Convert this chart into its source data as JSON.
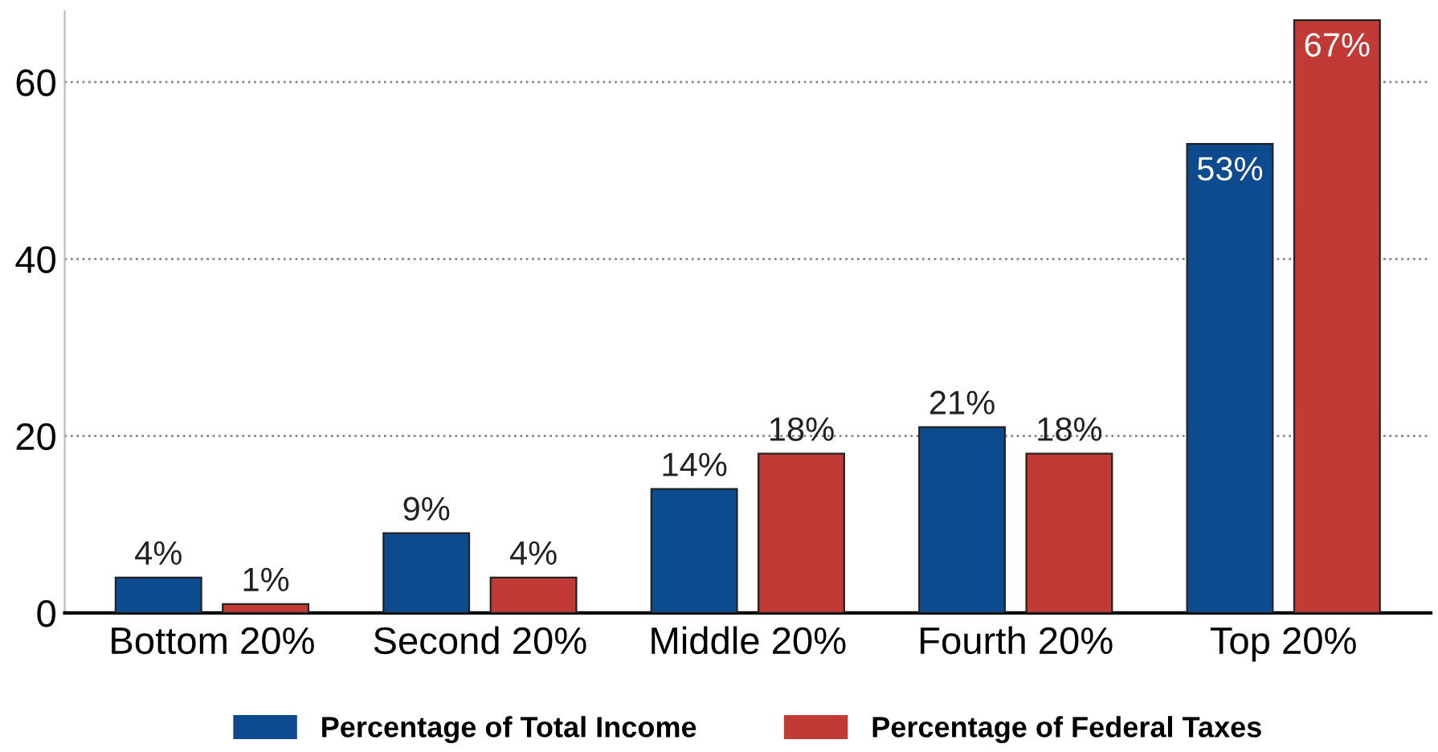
{
  "chart_data": {
    "type": "bar",
    "categories": [
      "Bottom 20%",
      "Second 20%",
      "Middle 20%",
      "Fourth 20%",
      "Top 20%"
    ],
    "series": [
      {
        "name": "Percentage of Total Income",
        "color": "#0e4a8e",
        "values": [
          4,
          9,
          14,
          21,
          53
        ],
        "value_labels": [
          "4%",
          "9%",
          "14%",
          "21%",
          "53%"
        ]
      },
      {
        "name": "Percentage of Federal Taxes",
        "color": "#c23a36",
        "values": [
          1,
          4,
          18,
          18,
          67
        ],
        "value_labels": [
          "1%",
          "4%",
          "18%",
          "18%",
          "67%"
        ]
      }
    ],
    "ylim": [
      0,
      68
    ],
    "yticks": [
      0,
      20,
      40,
      60
    ],
    "grid": "y",
    "legend": "bottom"
  }
}
